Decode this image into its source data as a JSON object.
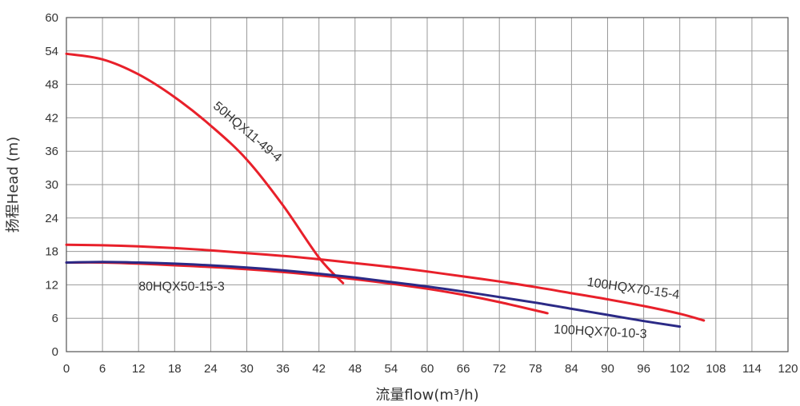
{
  "chart_data": {
    "type": "line",
    "xlabel": "流量flow(m³/h)",
    "ylabel": "扬程Head (m)",
    "xlim": [
      0,
      120
    ],
    "ylim": [
      0,
      60
    ],
    "x_ticks": [
      "0",
      "6",
      "12",
      "18",
      "24",
      "30",
      "36",
      "42",
      "48",
      "54",
      "60",
      "66",
      "72",
      "78",
      "84",
      "90",
      "96",
      "102",
      "108",
      "114",
      "120"
    ],
    "y_ticks": [
      "0",
      "6",
      "12",
      "18",
      "24",
      "30",
      "36",
      "42",
      "48",
      "54",
      "60"
    ],
    "grid": true,
    "series": [
      {
        "name": "50HQX11-49-4",
        "color": "#e8202a",
        "x": [
          0,
          6,
          12,
          18,
          24,
          30,
          36,
          42,
          46
        ],
        "y": [
          53.5,
          52.5,
          49.8,
          45.7,
          40.6,
          34.5,
          26.3,
          16.9,
          12.3
        ]
      },
      {
        "name": "80HQX50-15-3",
        "color": "#e8202a",
        "x": [
          0,
          6,
          12,
          18,
          24,
          30,
          36,
          42,
          48,
          54,
          60,
          66,
          72,
          80
        ],
        "y": [
          16.0,
          16.0,
          15.8,
          15.5,
          15.2,
          14.8,
          14.3,
          13.7,
          13.0,
          12.2,
          11.3,
          10.2,
          8.9,
          6.9
        ]
      },
      {
        "name": "100HQX70-10-3",
        "color": "#2b2a86",
        "x": [
          0,
          6,
          12,
          18,
          24,
          30,
          36,
          42,
          48,
          54,
          60,
          66,
          72,
          78,
          84,
          90,
          96,
          102
        ],
        "y": [
          16.0,
          16.1,
          16.0,
          15.8,
          15.5,
          15.1,
          14.6,
          14.0,
          13.3,
          12.5,
          11.7,
          10.8,
          9.8,
          8.8,
          7.7,
          6.6,
          5.5,
          4.5
        ]
      },
      {
        "name": "100HQX70-15-4",
        "color": "#e8202a",
        "x": [
          0,
          6,
          12,
          18,
          24,
          30,
          36,
          42,
          48,
          54,
          60,
          66,
          72,
          78,
          84,
          90,
          96,
          102,
          106
        ],
        "y": [
          19.2,
          19.1,
          18.9,
          18.6,
          18.2,
          17.7,
          17.2,
          16.6,
          15.9,
          15.2,
          14.4,
          13.5,
          12.6,
          11.6,
          10.5,
          9.4,
          8.2,
          6.8,
          5.6
        ]
      }
    ]
  }
}
